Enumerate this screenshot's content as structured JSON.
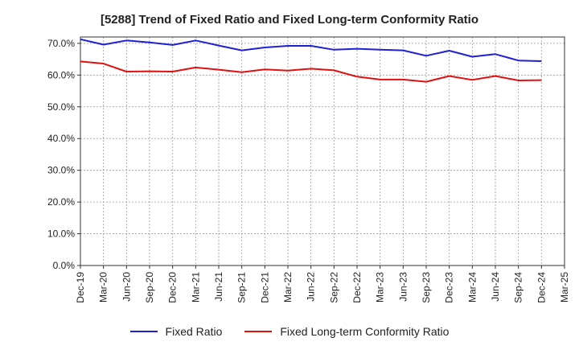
{
  "chart_data": {
    "type": "line",
    "title": "[5288]  Trend of Fixed Ratio and Fixed Long-term Conformity Ratio",
    "xlabel": "",
    "ylabel": "",
    "ylim": [
      0,
      72
    ],
    "y_ticks": [
      0,
      10,
      20,
      30,
      40,
      50,
      60,
      70
    ],
    "y_tick_labels": [
      "0.0%",
      "10.0%",
      "20.0%",
      "30.0%",
      "40.0%",
      "50.0%",
      "60.0%",
      "70.0%"
    ],
    "grid": true,
    "legend_position": "bottom",
    "categories": [
      "Dec-19",
      "Mar-20",
      "Jun-20",
      "Sep-20",
      "Dec-20",
      "Mar-21",
      "Jun-21",
      "Sep-21",
      "Dec-21",
      "Mar-22",
      "Jun-22",
      "Sep-22",
      "Dec-22",
      "Mar-23",
      "Jun-23",
      "Sep-23",
      "Dec-23",
      "Mar-24",
      "Jun-24",
      "Sep-24",
      "Dec-24",
      "Mar-25"
    ],
    "series": [
      {
        "name": "Fixed Ratio",
        "color": "#1f1fd6",
        "values": [
          71.3,
          69.6,
          70.9,
          70.3,
          69.5,
          70.9,
          69.3,
          67.8,
          68.7,
          69.2,
          69.2,
          68.0,
          68.3,
          68.0,
          67.8,
          66.1,
          67.7,
          65.8,
          66.6,
          64.6,
          64.4,
          null
        ]
      },
      {
        "name": "Fixed Long-term Conformity Ratio",
        "color": "#e01010",
        "values": [
          64.3,
          63.6,
          61.1,
          61.2,
          61.1,
          62.4,
          61.7,
          60.9,
          61.8,
          61.4,
          62.0,
          61.5,
          59.5,
          58.6,
          58.6,
          57.9,
          59.7,
          58.5,
          59.7,
          58.3,
          58.4,
          null
        ]
      }
    ]
  }
}
